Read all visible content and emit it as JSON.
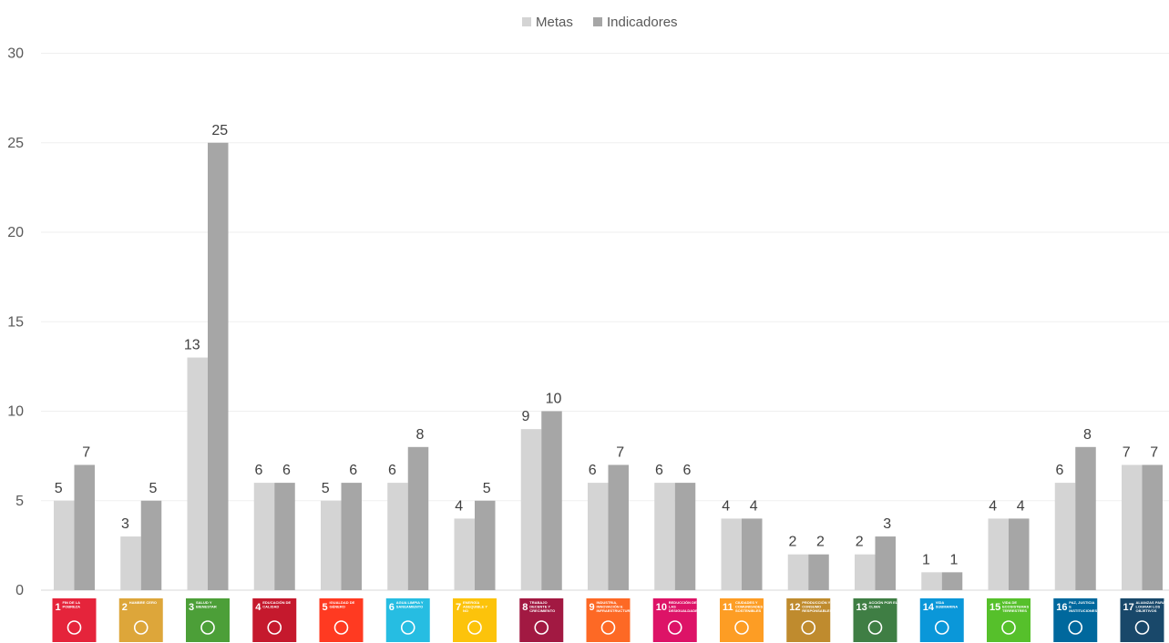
{
  "chart_data": {
    "type": "bar",
    "categories": [
      "1",
      "2",
      "3",
      "4",
      "5",
      "6",
      "7",
      "8",
      "9",
      "10",
      "11",
      "12",
      "13",
      "14",
      "15",
      "16",
      "17"
    ],
    "category_titles": [
      "FIN DE LA POBREZA",
      "HAMBRE CERO",
      "SALUD Y BIENESTAR",
      "EDUCACIÓN DE CALIDAD",
      "IGUALDAD DE GÉNERO",
      "AGUA LIMPIA Y SANEAMIENTO",
      "ENERGÍA ASEQUIBLE Y NO CONTAMINANTE",
      "TRABAJO DECENTE Y CRECIMIENTO ECONÓMICO",
      "INDUSTRIA, INNOVACIÓN E INFRAESTRUCTURA",
      "REDUCCIÓN DE LAS DESIGUALDADES",
      "CIUDADES Y COMUNIDADES SOSTENIBLES",
      "PRODUCCIÓN Y CONSUMO RESPONSABLES",
      "ACCIÓN POR EL CLIMA",
      "VIDA SUBMARINA",
      "VIDA DE ECOSISTEMAS TERRESTRES",
      "PAZ, JUSTICIA E INSTITUCIONES SÓLIDAS",
      "ALIANZAS PARA LOGRAR LOS OBJETIVOS"
    ],
    "category_colors": [
      "#e5243b",
      "#dda63a",
      "#4c9f38",
      "#c5192d",
      "#ff3a21",
      "#26bde2",
      "#fcc30b",
      "#a21942",
      "#fd6925",
      "#dd1367",
      "#fd9d24",
      "#bf8b2e",
      "#3f7e44",
      "#0a97d9",
      "#56c02b",
      "#00689d",
      "#19486a"
    ],
    "series": [
      {
        "name": "Metas",
        "color": "#d4d4d4",
        "values": [
          5,
          3,
          13,
          6,
          5,
          6,
          4,
          9,
          6,
          6,
          4,
          2,
          2,
          1,
          4,
          6,
          7
        ]
      },
      {
        "name": "Indicadores",
        "color": "#a6a6a6",
        "values": [
          7,
          5,
          25,
          6,
          6,
          8,
          5,
          10,
          7,
          6,
          4,
          2,
          3,
          1,
          4,
          8,
          7
        ]
      }
    ],
    "yticks": [
      "0",
      "5",
      "10",
      "15",
      "20",
      "25",
      "30"
    ],
    "ylim": [
      0,
      30
    ],
    "legend_position": "top-center",
    "grid": true,
    "title": "",
    "xlabel": "",
    "ylabel": ""
  }
}
